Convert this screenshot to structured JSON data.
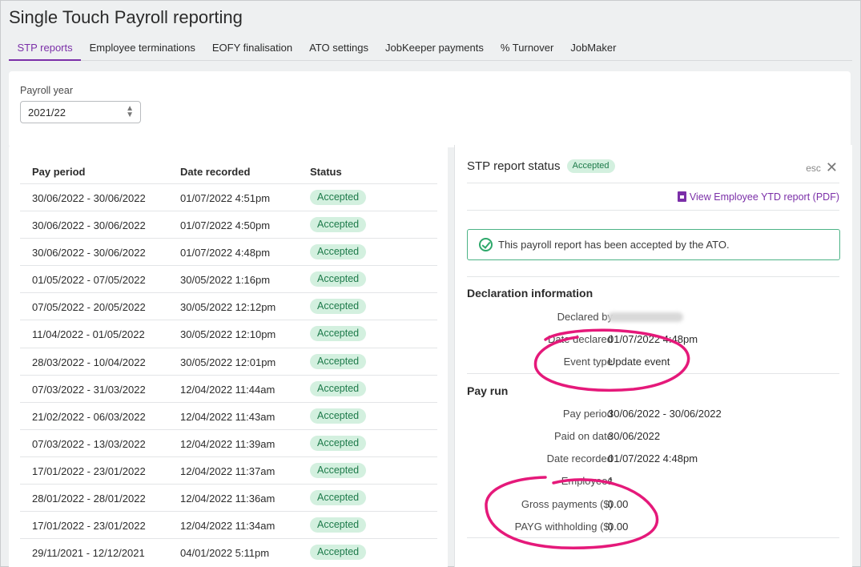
{
  "page_title": "Single Touch Payroll reporting",
  "tabs": [
    {
      "label": "STP reports",
      "active": true
    },
    {
      "label": "Employee terminations"
    },
    {
      "label": "EOFY finalisation"
    },
    {
      "label": "ATO settings"
    },
    {
      "label": "JobKeeper payments"
    },
    {
      "label": "% Turnover"
    },
    {
      "label": "JobMaker"
    }
  ],
  "payroll_year": {
    "label": "Payroll year",
    "value": "2021/22"
  },
  "table": {
    "headers": [
      "Pay period",
      "Date recorded",
      "Status"
    ],
    "rows": [
      {
        "period": "30/06/2022 - 30/06/2022",
        "recorded": "01/07/2022 4:51pm",
        "status": "Accepted"
      },
      {
        "period": "30/06/2022 - 30/06/2022",
        "recorded": "01/07/2022 4:50pm",
        "status": "Accepted"
      },
      {
        "period": "30/06/2022 - 30/06/2022",
        "recorded": "01/07/2022 4:48pm",
        "status": "Accepted"
      },
      {
        "period": "01/05/2022 - 07/05/2022",
        "recorded": "30/05/2022 1:16pm",
        "status": "Accepted"
      },
      {
        "period": "07/05/2022 - 20/05/2022",
        "recorded": "30/05/2022 12:12pm",
        "status": "Accepted"
      },
      {
        "period": "11/04/2022 - 01/05/2022",
        "recorded": "30/05/2022 12:10pm",
        "status": "Accepted"
      },
      {
        "period": "28/03/2022 - 10/04/2022",
        "recorded": "30/05/2022 12:01pm",
        "status": "Accepted"
      },
      {
        "period": "07/03/2022 - 31/03/2022",
        "recorded": "12/04/2022 11:44am",
        "status": "Accepted"
      },
      {
        "period": "21/02/2022 - 06/03/2022",
        "recorded": "12/04/2022 11:43am",
        "status": "Accepted"
      },
      {
        "period": "07/03/2022 - 13/03/2022",
        "recorded": "12/04/2022 11:39am",
        "status": "Accepted"
      },
      {
        "period": "17/01/2022 - 23/01/2022",
        "recorded": "12/04/2022 11:37am",
        "status": "Accepted"
      },
      {
        "period": "28/01/2022 - 28/01/2022",
        "recorded": "12/04/2022 11:36am",
        "status": "Accepted"
      },
      {
        "period": "17/01/2022 - 23/01/2022",
        "recorded": "12/04/2022 11:34am",
        "status": "Accepted"
      },
      {
        "period": "29/11/2021 - 12/12/2021",
        "recorded": "04/01/2022 5:11pm",
        "status": "Accepted"
      }
    ]
  },
  "detail": {
    "title": "STP report status",
    "status": "Accepted",
    "esc": "esc",
    "pdf_link": "View Employee YTD report (PDF)",
    "alert": "This payroll report has been accepted by the ATO.",
    "declaration": {
      "title": "Declaration information",
      "declared_by_label": "Declared by",
      "date_declared_label": "Date declared",
      "date_declared": "01/07/2022 4:48pm",
      "event_type_label": "Event type",
      "event_type": "Update event"
    },
    "pay_run": {
      "title": "Pay run",
      "pay_period_label": "Pay period",
      "pay_period": "30/06/2022 - 30/06/2022",
      "paid_on_label": "Paid on date",
      "paid_on": "30/06/2022",
      "recorded_label": "Date recorded",
      "recorded": "01/07/2022 4:48pm",
      "employees_label": "Employees",
      "employees": "1",
      "gross_label": "Gross payments ($)",
      "gross": "0.00",
      "payg_label": "PAYG withholding ($)",
      "payg": "0.00"
    }
  },
  "colors": {
    "accent": "#7b2fa8",
    "success_bg": "#d3f0df",
    "success_text": "#1d7a4a",
    "annotation": "#e5197a"
  }
}
